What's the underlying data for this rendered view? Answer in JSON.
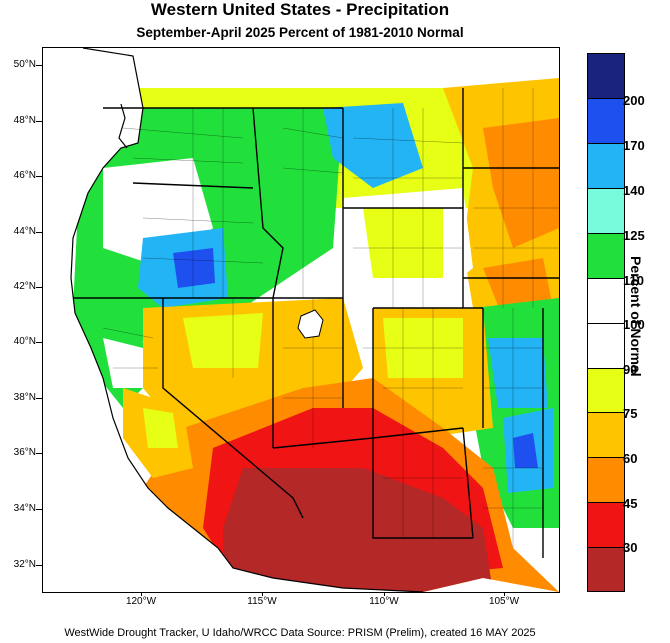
{
  "title": "Western United States - Precipitation",
  "subtitle": "September-April 2025  Percent of 1981-2010 Normal",
  "footer": "WestWide Drought Tracker, U Idaho/WRCC Data Source: PRISM (Prelim), created 16 MAY 2025",
  "legend": {
    "title": "Percent of Normal",
    "labels": [
      "200",
      "170",
      "140",
      "125",
      "110",
      "100",
      "90",
      "75",
      "60",
      "45",
      "30"
    ],
    "colors": [
      "#1a237e",
      "#1e50f0",
      "#22b4f5",
      "#78fadc",
      "#22e03c",
      "#ffffff",
      "#ffffff",
      "#e6ff14",
      "#ffc400",
      "#ff8c00",
      "#f01414",
      "#b42828"
    ]
  },
  "axes": {
    "lat_labels": [
      "50°N",
      "48°N",
      "46°N",
      "44°N",
      "42°N",
      "40°N",
      "38°N",
      "36°N",
      "34°N",
      "32°N"
    ],
    "lon_labels": [
      "120°W",
      "115°W",
      "110°W",
      "105°W"
    ]
  }
}
